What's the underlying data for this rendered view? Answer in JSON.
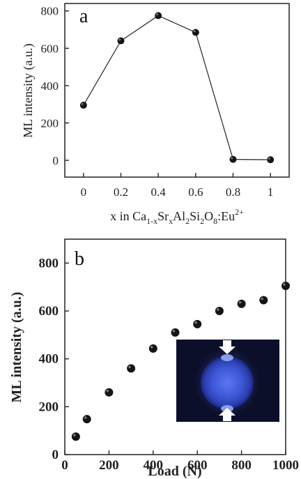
{
  "chart_data": [
    {
      "panel_label": "a",
      "type": "line",
      "markers": true,
      "x": [
        0,
        0.2,
        0.4,
        0.6,
        0.8,
        1
      ],
      "values": [
        295,
        640,
        775,
        685,
        5,
        3
      ],
      "x_ticks": [
        "0",
        "0.2",
        "0.4",
        "0.6",
        "0.8",
        "1"
      ],
      "y_ticks": [
        "0",
        "200",
        "400",
        "600",
        "800"
      ],
      "xlim": [
        -0.1,
        1.1
      ],
      "ylim": [
        -90,
        840
      ],
      "xlabel": {
        "prefix": "x in Ca",
        "sub1": "1-x",
        "mid1": "Sr",
        "sub2": "x",
        "mid2": "Al",
        "sub3": "2",
        "mid3": "Si",
        "sub4": "2",
        "mid4": "O",
        "sub5": "8",
        "mid5": ":Eu",
        "sup": "2+"
      },
      "ylabel": "ML intensity (a.u.)",
      "grid": false,
      "colors": {
        "marker": "#151515",
        "line": "#333333"
      }
    },
    {
      "panel_label": "b",
      "type": "scatter",
      "x": [
        50,
        100,
        200,
        300,
        400,
        500,
        600,
        700,
        800,
        900,
        1000
      ],
      "values": [
        75,
        148,
        260,
        360,
        443,
        510,
        545,
        600,
        630,
        645,
        705
      ],
      "x_ticks": [
        "0",
        "200",
        "400",
        "600",
        "800",
        "1000"
      ],
      "y_ticks": [
        "0",
        "200",
        "400",
        "600",
        "800"
      ],
      "xlim": [
        0,
        1000
      ],
      "ylim": [
        0,
        900
      ],
      "xlabel": "Load (N)",
      "ylabel": "ML intensity (a.u.)",
      "grid": false,
      "inset": "photo of blue glowing sphere compressed between two arrows",
      "colors": {
        "marker": "#151515",
        "inset_bg": "#0c0f2a",
        "glow": "#3b54d6"
      }
    }
  ]
}
